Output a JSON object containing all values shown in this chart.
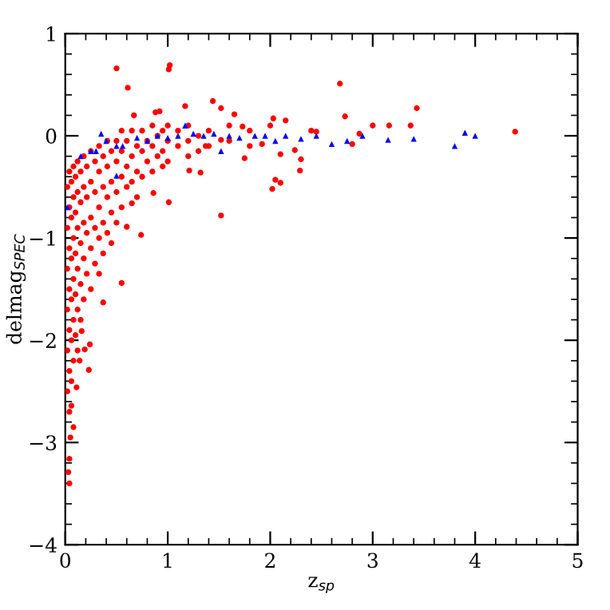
{
  "chart_data": {
    "type": "scatter",
    "xlabel": "z$_{sp}$",
    "ylabel": "delmag$_{SPEC}$",
    "xlim": [
      0,
      5
    ],
    "ylim": [
      -4,
      1
    ],
    "xticks": [
      0,
      1,
      2,
      3,
      4,
      5
    ],
    "yticks": [
      -4,
      -3,
      -2,
      -1,
      0,
      1
    ],
    "grid": false,
    "legend": false,
    "series": [
      {
        "color": "#ff0000",
        "marker": "circle",
        "x": [
          0.5,
          1.02,
          1.01,
          0.61,
          1.44,
          1.17,
          1.52,
          1.65,
          0.67,
          0.88,
          0.92,
          1.52,
          0.74,
          0.55,
          0.37,
          0.24,
          0.23,
          0.11,
          0.04,
          0.03,
          0.04,
          0.05,
          0.06,
          0.08,
          0.14,
          0.19,
          0.16,
          2.68,
          3.43,
          4.39,
          2.02,
          2.05,
          2.1,
          2.29,
          2.3,
          2.1,
          1.75,
          2.73,
          3.0,
          3.37,
          3.16,
          2.15,
          2.03,
          1.73,
          2.45,
          2.87,
          2.8,
          2.24,
          1.92,
          1.32,
          1.21,
          1.01,
          0.86,
          0.6,
          0.65,
          1.52,
          1.37,
          0.02,
          0.02,
          0.02,
          0.02,
          0.02,
          0.02,
          0.04,
          0.04,
          0.04,
          0.04,
          0.04,
          0.04,
          0.04,
          0.06,
          0.06,
          0.06,
          0.06,
          0.06,
          0.06,
          0.08,
          0.08,
          0.08,
          0.08,
          0.08,
          0.08,
          0.1,
          0.1,
          0.1,
          0.1,
          0.1,
          0.12,
          0.12,
          0.12,
          0.12,
          0.12,
          0.12,
          0.15,
          0.15,
          0.15,
          0.15,
          0.15,
          0.18,
          0.18,
          0.18,
          0.18,
          0.18,
          0.21,
          0.21,
          0.21,
          0.21,
          0.25,
          0.25,
          0.25,
          0.25,
          0.25,
          0.29,
          0.29,
          0.29,
          0.29,
          0.33,
          0.33,
          0.33,
          0.33,
          0.33,
          0.37,
          0.37,
          0.37,
          0.37,
          0.41,
          0.41,
          0.41,
          0.41,
          0.45,
          0.45,
          0.45,
          0.45,
          0.5,
          0.5,
          0.5,
          0.5,
          0.55,
          0.55,
          0.55,
          0.55,
          0.6,
          0.6,
          0.6,
          0.65,
          0.65,
          0.65,
          0.7,
          0.7,
          0.7,
          0.75,
          0.75,
          0.75,
          0.8,
          0.8,
          0.85,
          0.85,
          0.85,
          0.9,
          0.9,
          0.95,
          0.95,
          0.95,
          1.0,
          1.0,
          1.0,
          1.1,
          1.1,
          1.2,
          1.2,
          1.2,
          1.3,
          1.3,
          1.4,
          1.4,
          1.6,
          1.6,
          1.8,
          1.8,
          2.0,
          2.4
        ],
        "values": [
          0.66,
          0.69,
          0.65,
          0.47,
          0.34,
          0.29,
          0.27,
          0.21,
          0.2,
          0.23,
          0.24,
          -0.78,
          -0.97,
          -1.44,
          -1.63,
          -2.04,
          -2.29,
          -2.46,
          -3.16,
          -3.29,
          -3.4,
          -2.95,
          -2.64,
          -2.85,
          -2.2,
          -2.09,
          -1.91,
          0.51,
          0.27,
          0.04,
          -0.52,
          -0.43,
          -0.46,
          -0.34,
          -0.23,
          -0.18,
          -0.22,
          0.19,
          0.1,
          0.1,
          0.1,
          0.15,
          0.17,
          0.09,
          0.04,
          0.02,
          -0.08,
          -0.14,
          -0.08,
          -0.36,
          -0.34,
          -0.65,
          -0.56,
          -0.89,
          -0.66,
          -0.04,
          -0.1,
          -0.5,
          -0.9,
          -1.3,
          -1.7,
          -2.1,
          -2.5,
          -0.35,
          -0.7,
          -1.1,
          -1.5,
          -1.9,
          -2.3,
          -2.7,
          -0.45,
          -0.8,
          -1.2,
          -1.6,
          -2.0,
          -2.4,
          -0.3,
          -0.6,
          -1.0,
          -1.4,
          -1.8,
          -2.2,
          -0.4,
          -0.75,
          -1.15,
          -1.55,
          -1.95,
          -0.25,
          -0.55,
          -0.9,
          -1.3,
          -1.7,
          -2.1,
          -0.35,
          -0.65,
          -1.05,
          -1.45,
          -1.8,
          -0.2,
          -0.5,
          -0.85,
          -1.2,
          -1.6,
          -0.3,
          -0.6,
          -0.95,
          -1.35,
          -0.15,
          -0.45,
          -0.8,
          -1.1,
          -1.5,
          -0.25,
          -0.55,
          -0.9,
          -1.25,
          -0.1,
          -0.35,
          -0.7,
          -1.0,
          -1.35,
          -0.2,
          -0.5,
          -0.85,
          -1.15,
          -0.05,
          -0.3,
          -0.6,
          -0.95,
          -0.15,
          -0.45,
          -0.75,
          -1.05,
          -0.05,
          -0.25,
          -0.55,
          -0.85,
          0.05,
          -0.15,
          -0.4,
          -0.7,
          -0.05,
          -0.3,
          -0.5,
          0.05,
          -0.2,
          -0.45,
          -0.1,
          -0.35,
          -0.6,
          0.05,
          -0.15,
          -0.4,
          -0.05,
          -0.25,
          0.1,
          -0.1,
          -0.35,
          0.0,
          -0.2,
          0.05,
          -0.15,
          -0.3,
          0.1,
          -0.05,
          -0.25,
          0.05,
          -0.1,
          0.1,
          -0.05,
          -0.2,
          0.0,
          -0.15,
          0.05,
          -0.1,
          0.1,
          -0.05,
          0.05,
          -0.1,
          0.1,
          0.05
        ]
      },
      {
        "color": "#0000ff",
        "marker": "triangle",
        "x": [
          0.02,
          0.15,
          0.25,
          0.3,
          0.35,
          0.4,
          0.5,
          0.5,
          0.56,
          0.7,
          0.8,
          0.9,
          1.0,
          1.1,
          1.17,
          1.25,
          1.35,
          1.45,
          1.52,
          1.6,
          1.7,
          1.85,
          1.95,
          2.05,
          2.15,
          2.3,
          2.45,
          2.6,
          2.75,
          2.9,
          3.15,
          3.4,
          3.8,
          3.9,
          4.0
        ],
        "values": [
          -0.7,
          -0.2,
          -0.15,
          -0.15,
          0.02,
          -0.05,
          -0.1,
          -0.39,
          -0.1,
          -0.02,
          -0.05,
          0.0,
          -0.02,
          0.0,
          0.1,
          0.02,
          0.0,
          0.02,
          -0.15,
          0.0,
          -0.02,
          0.0,
          0.0,
          -0.05,
          0.0,
          -0.03,
          0.0,
          -0.08,
          -0.05,
          0.0,
          -0.04,
          -0.03,
          -0.1,
          0.03,
          0.0
        ]
      }
    ]
  }
}
